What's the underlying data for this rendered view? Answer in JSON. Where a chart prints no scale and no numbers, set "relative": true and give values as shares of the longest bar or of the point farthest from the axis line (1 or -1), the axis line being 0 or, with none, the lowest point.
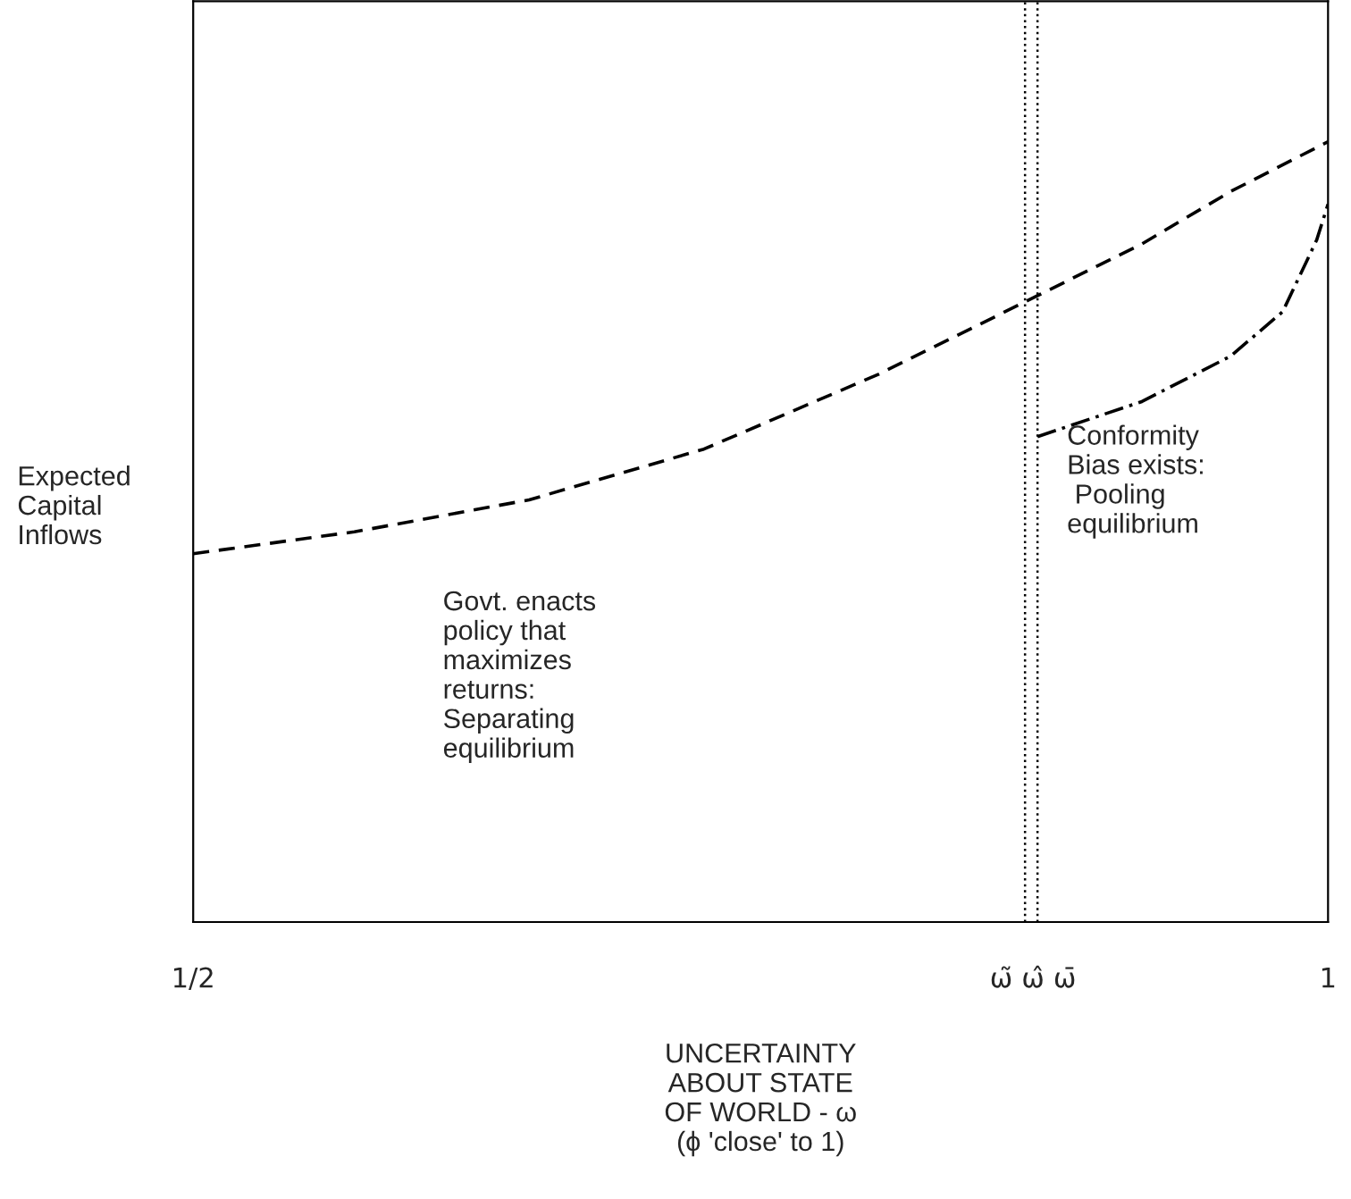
{
  "chart_data": {
    "type": "line",
    "relative": true,
    "xlabel": "UNCERTAINTY\nABOUT STATE\nOF WORLD - ω\n(ϕ 'close' to 1)",
    "ylabel": "Expected\nCapital\nInflows",
    "xlim": [
      0.5,
      1
    ],
    "xticks": [
      {
        "value": 0.5,
        "label": "1/2"
      },
      {
        "value": 0.856,
        "label": "ω̃"
      },
      {
        "value": 0.87,
        "label": "ω̂"
      },
      {
        "value": 0.884,
        "label": "ω̄"
      },
      {
        "value": 1,
        "label": "1"
      }
    ],
    "grid": false,
    "legend": false,
    "marker": "none",
    "series": [
      {
        "color": "#000000",
        "line_style": "dashed",
        "x": [
          0.5,
          0.571,
          0.648,
          0.725,
          0.802,
          0.866,
          0.918,
          0.957,
          1
        ],
        "values": [
          0.472,
          0.5,
          0.541,
          0.606,
          0.702,
          0.794,
          0.869,
          0.936,
          1
        ]
      },
      {
        "color": "#000000",
        "line_style": "dashdot",
        "x": [
          0.872,
          0.918,
          0.957,
          0.98,
          0.995,
          1
        ],
        "values": [
          0.622,
          0.667,
          0.725,
          0.782,
          0.874,
          0.92
        ]
      }
    ],
    "ref_lines": [
      {
        "axis": "x",
        "value": 0.8665,
        "line_style": "dotted",
        "color": "#000000"
      },
      {
        "axis": "x",
        "value": 0.872,
        "line_style": "dotted",
        "color": "#000000"
      }
    ],
    "annotations": [
      "Govt. enacts\npolicy that\nmaximizes\nreturns:\nSeparating\nequilibrium",
      "Conformity\nBias exists:\n Pooling\nequilibrium"
    ]
  }
}
